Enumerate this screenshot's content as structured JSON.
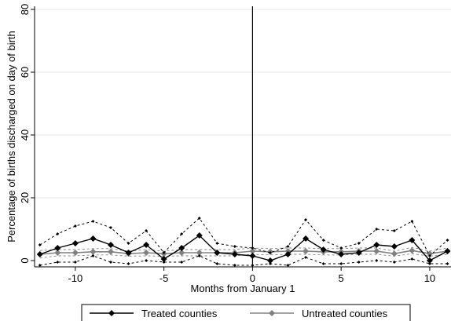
{
  "chart_data": {
    "type": "line",
    "xlabel": "Months from January 1",
    "ylabel": "Percentage of births discharged on day of birth",
    "xlim": [
      -12.3,
      11.2
    ],
    "ylim": [
      -2,
      81
    ],
    "x_ticks": [
      -10,
      -5,
      0,
      5,
      10
    ],
    "y_ticks": [
      0,
      20,
      40,
      60,
      80
    ],
    "grid": true,
    "reference_line_x": 0,
    "legend": {
      "placement": "bottom"
    },
    "x": [
      -12,
      -11,
      -10,
      -9,
      -8,
      -7,
      -6,
      -5,
      -4,
      -3,
      -2,
      -1,
      0,
      1,
      2,
      3,
      4,
      5,
      6,
      7,
      8,
      9,
      10,
      11
    ],
    "series": [
      {
        "name": "Treated counties",
        "color": "#000000",
        "marker": "diamond",
        "values": [
          2.0,
          4.0,
          5.5,
          7.0,
          5.0,
          2.5,
          5.0,
          0.5,
          4.0,
          8.0,
          2.5,
          2.0,
          1.5,
          0.0,
          2.0,
          7.0,
          3.5,
          2.0,
          2.5,
          5.0,
          4.5,
          6.5,
          0.0,
          3.0
        ],
        "ci_upper": [
          5.0,
          8.5,
          11.0,
          12.5,
          10.5,
          5.5,
          9.5,
          2.5,
          8.5,
          13.5,
          5.5,
          4.5,
          4.0,
          2.5,
          4.5,
          13.0,
          6.5,
          4.0,
          5.5,
          10.0,
          9.5,
          12.5,
          1.5,
          6.5
        ],
        "ci_lower": [
          -1.5,
          -0.5,
          -0.5,
          1.5,
          -0.5,
          -1.0,
          0.0,
          -0.5,
          -0.5,
          1.5,
          -1.0,
          -1.5,
          -1.5,
          -1.0,
          -1.5,
          1.0,
          -1.0,
          -1.0,
          -0.5,
          0.0,
          -0.5,
          0.5,
          -1.0,
          -1.0
        ]
      },
      {
        "name": "Untreated counties",
        "color": "#808080",
        "marker": "diamond",
        "values": [
          2.0,
          2.5,
          2.5,
          2.8,
          2.8,
          2.2,
          2.5,
          2.2,
          2.5,
          2.5,
          2.5,
          2.5,
          3.0,
          2.8,
          3.0,
          3.0,
          2.8,
          2.8,
          3.0,
          3.0,
          2.2,
          3.2,
          2.2,
          3.0
        ],
        "ci_upper": [
          3.2,
          3.5,
          3.5,
          3.8,
          3.8,
          3.0,
          3.5,
          3.0,
          3.5,
          3.5,
          3.5,
          3.5,
          4.0,
          3.8,
          4.0,
          4.0,
          3.8,
          3.8,
          4.0,
          4.0,
          3.0,
          4.2,
          3.0,
          4.0
        ],
        "ci_lower": [
          0.8,
          1.5,
          1.5,
          1.8,
          1.8,
          1.4,
          1.5,
          1.4,
          1.5,
          1.5,
          1.5,
          1.5,
          2.0,
          1.8,
          2.0,
          2.0,
          1.8,
          1.8,
          2.0,
          2.0,
          1.4,
          2.2,
          1.4,
          2.0
        ]
      }
    ]
  }
}
